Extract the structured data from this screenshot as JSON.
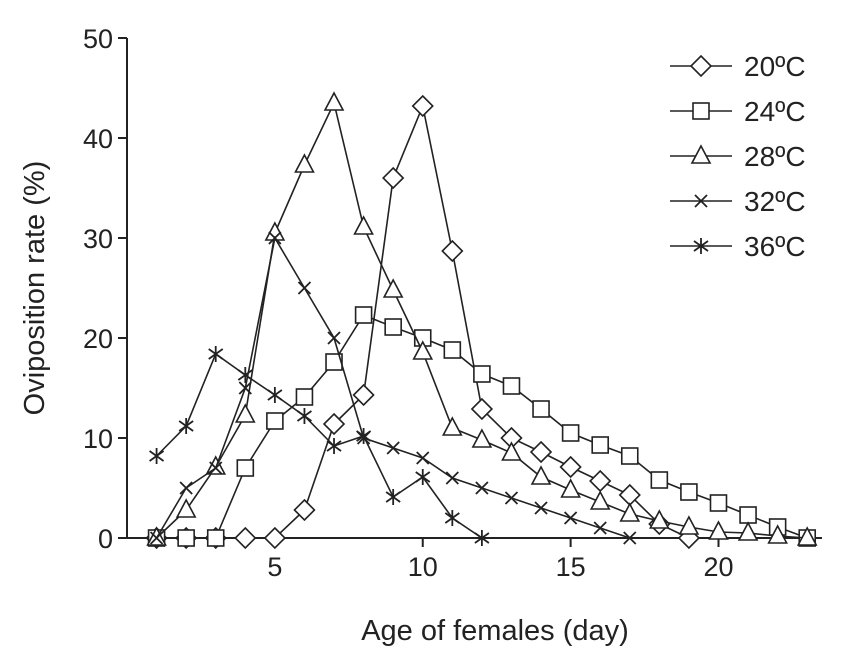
{
  "chart_data": {
    "type": "line",
    "title": "",
    "xlabel": "Age of females (day)",
    "ylabel": "Oviposition rate (%)",
    "xlim": [
      0,
      23.5
    ],
    "ylim": [
      0,
      50
    ],
    "xticks": [
      5,
      10,
      15,
      20
    ],
    "yticks": [
      0,
      10,
      20,
      30,
      40,
      50
    ],
    "grid": false,
    "legend_position": "top-right",
    "series": [
      {
        "name": "20ºC",
        "marker": "diamond",
        "x": [
          1,
          2,
          3,
          4,
          5,
          6,
          7,
          8,
          9,
          10,
          11,
          12,
          13,
          14,
          15,
          16,
          17,
          18,
          19
        ],
        "y": [
          0,
          0,
          0,
          0,
          0,
          2.8,
          11.4,
          14.3,
          36,
          43.2,
          28.7,
          12.9,
          10,
          8.6,
          7.1,
          5.7,
          4.3,
          1.4,
          0
        ]
      },
      {
        "name": "24ºC",
        "marker": "square",
        "x": [
          1,
          2,
          3,
          4,
          5,
          6,
          7,
          8,
          9,
          10,
          11,
          12,
          13,
          14,
          15,
          16,
          17,
          18,
          19,
          20,
          21,
          22,
          23
        ],
        "y": [
          0,
          0,
          0,
          7,
          11.7,
          14.1,
          17.6,
          22.3,
          21.1,
          20,
          18.8,
          16.4,
          15.2,
          12.9,
          10.5,
          9.3,
          8.2,
          5.8,
          4.6,
          3.5,
          2.3,
          1.1,
          0
        ]
      },
      {
        "name": "28ºC",
        "marker": "triangle",
        "x": [
          1,
          2,
          3,
          4,
          5,
          6,
          7,
          8,
          9,
          10,
          11,
          12,
          13,
          14,
          15,
          16,
          17,
          18,
          19,
          20,
          21,
          22,
          23
        ],
        "y": [
          0,
          2.8,
          7.1,
          12.3,
          30.5,
          37.3,
          43.5,
          31.1,
          24.8,
          18.6,
          11,
          9.8,
          8.5,
          6.1,
          4.8,
          3.6,
          2.4,
          1.7,
          1.1,
          0.6,
          0.5,
          0.2,
          0
        ]
      },
      {
        "name": "32ºC",
        "marker": "x",
        "x": [
          1,
          2,
          3,
          4,
          5,
          6,
          7,
          8,
          9,
          10,
          11,
          12,
          13,
          14,
          15,
          16,
          17
        ],
        "y": [
          0,
          5,
          7,
          15,
          30,
          25,
          20,
          10,
          9,
          8,
          6,
          5,
          4,
          3,
          2,
          1,
          0
        ]
      },
      {
        "name": "36ºC",
        "marker": "asterisk",
        "x": [
          1,
          2,
          3,
          4,
          5,
          6,
          7,
          8,
          9,
          10,
          11,
          12
        ],
        "y": [
          8.2,
          11.2,
          18.4,
          16.3,
          14.3,
          12.2,
          9.2,
          10.2,
          4.1,
          6.1,
          2,
          0
        ]
      }
    ]
  }
}
